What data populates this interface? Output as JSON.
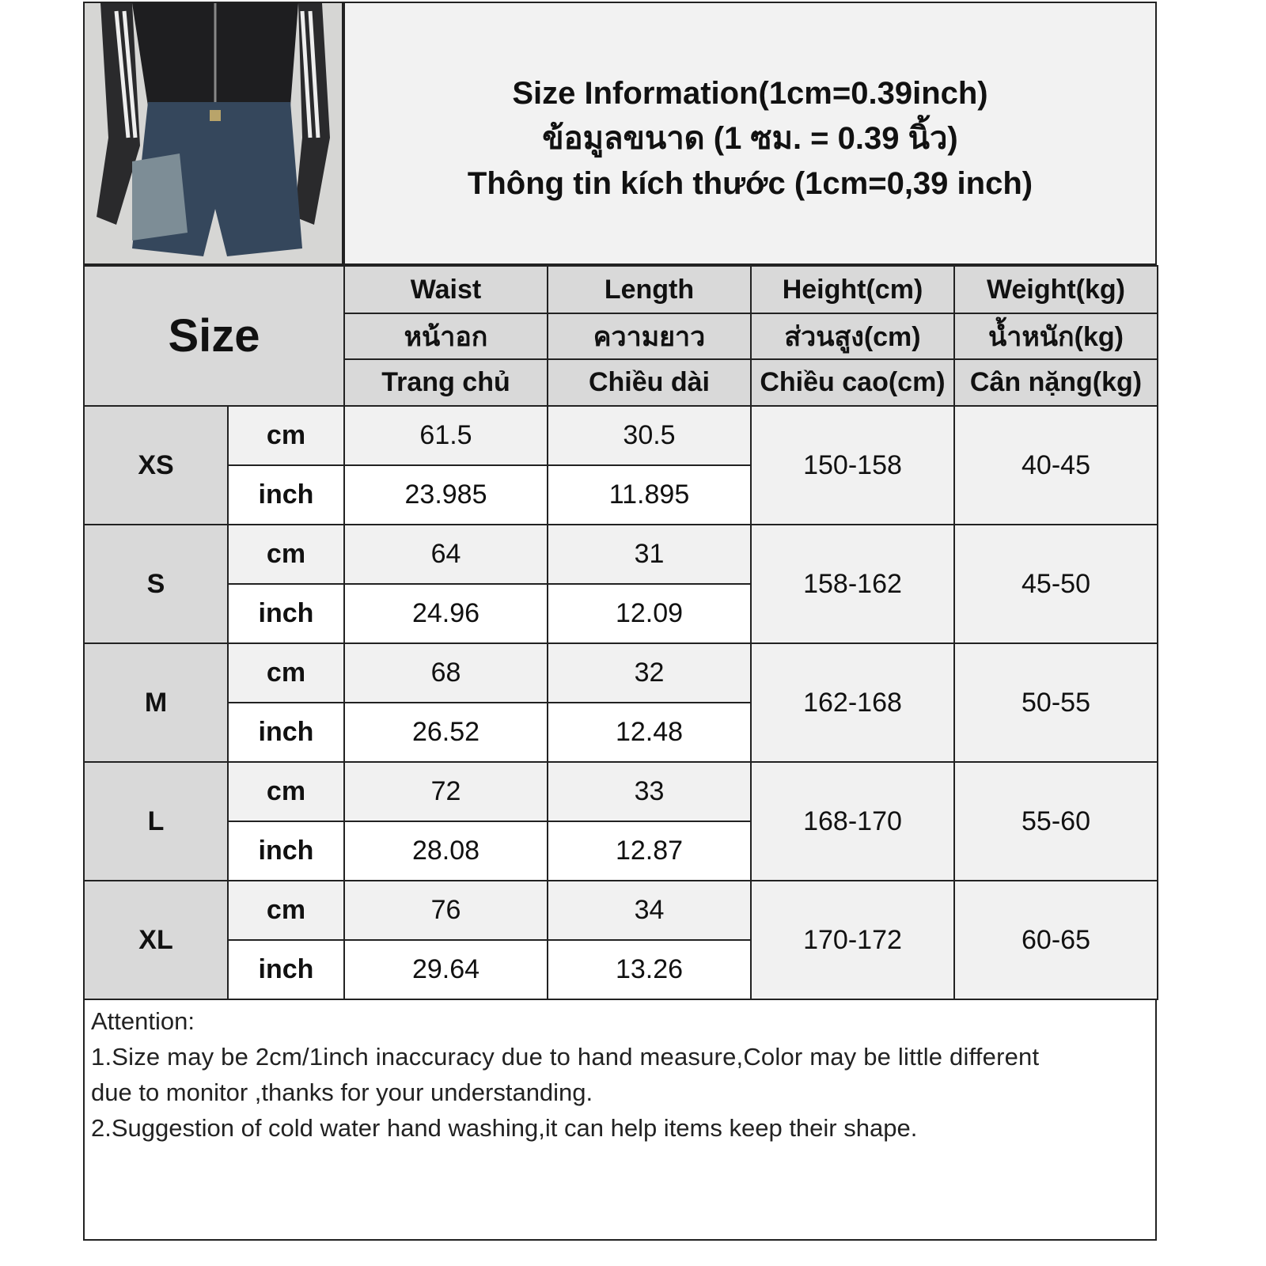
{
  "title": {
    "english": "Size Information(1cm=0.39inch)",
    "thai": "ข้อมูลขนาด (1 ซม. = 0.39 นิ้ว)",
    "vietnamese": "Thông tin kích thước (1cm=0,39 inch)"
  },
  "header": {
    "size_label": "Size",
    "columns": [
      {
        "en": "Waist",
        "th": "หน้าอก",
        "vi": "Trang chủ"
      },
      {
        "en": "Length",
        "th": "ความยาว",
        "vi": "Chiều dài"
      },
      {
        "en": "Height(cm)",
        "th": "ส่วนสูง(cm)",
        "vi": "Chiều cao(cm)"
      },
      {
        "en": "Weight(kg)",
        "th": "น้ำหนัก(kg)",
        "vi": "Cân nặng(kg)"
      }
    ]
  },
  "units": {
    "cm": "cm",
    "inch": "inch"
  },
  "rows": [
    {
      "size": "XS",
      "waist_cm": "61.5",
      "waist_inch": "23.985",
      "length_cm": "30.5",
      "length_inch": "11.895",
      "height": "150-158",
      "weight": "40-45"
    },
    {
      "size": "S",
      "waist_cm": "64",
      "waist_inch": "24.96",
      "length_cm": "31",
      "length_inch": "12.09",
      "height": "158-162",
      "weight": "45-50"
    },
    {
      "size": "M",
      "waist_cm": "68",
      "waist_inch": "26.52",
      "length_cm": "32",
      "length_inch": "12.48",
      "height": "162-168",
      "weight": "50-55"
    },
    {
      "size": "L",
      "waist_cm": "72",
      "waist_inch": "28.08",
      "length_cm": "33",
      "length_inch": "12.87",
      "height": "168-170",
      "weight": "55-60"
    },
    {
      "size": "XL",
      "waist_cm": "76",
      "waist_inch": "29.64",
      "length_cm": "34",
      "length_inch": "13.26",
      "height": "170-172",
      "weight": "60-65"
    }
  ],
  "notes": {
    "heading": "Attention:",
    "line1": "1.Size may be 2cm/1inch inaccuracy due to hand measure,Color may be little different",
    "line2": "due to monitor ,thanks for your understanding.",
    "line3": "2.Suggestion of cold water hand washing,it can help items keep their shape."
  },
  "colors": {
    "header_gray": "#d9d9d9",
    "light_row": "#f1f1f1",
    "border": "#222222"
  }
}
